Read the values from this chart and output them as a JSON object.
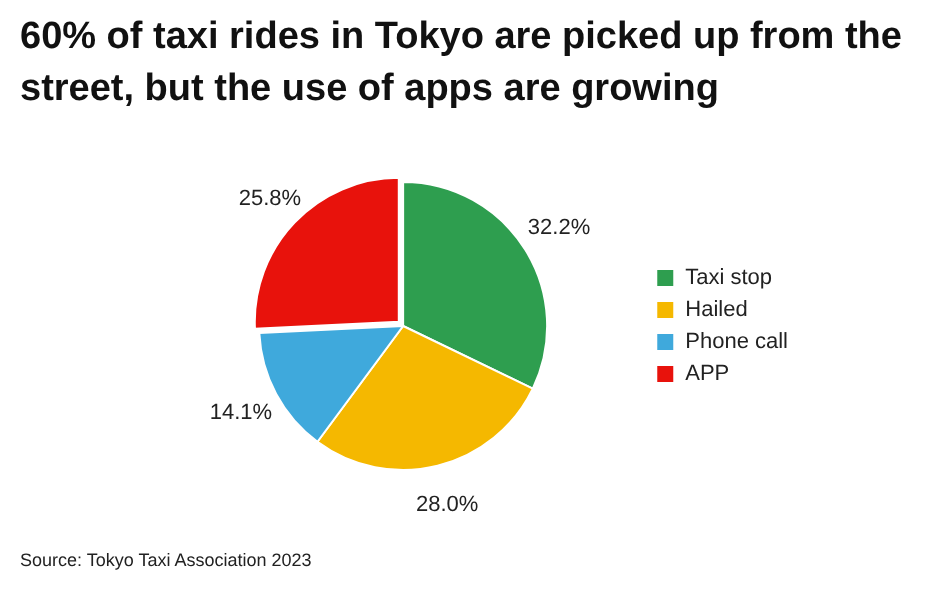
{
  "chart_data": {
    "type": "pie",
    "title": "60% of taxi rides in Tokyo are picked up from the street, but the use of apps are growing",
    "categories": [
      "Taxi stop",
      "Hailed",
      "Phone call",
      "APP"
    ],
    "values": [
      32.2,
      28.0,
      14.1,
      25.8
    ],
    "colors": [
      "#2e9e4f",
      "#f5b800",
      "#3fa9dc",
      "#e8120c"
    ],
    "value_labels": [
      "32.2%",
      "28.0%",
      "14.1%",
      "25.8%"
    ],
    "legend": "right",
    "annotations": [
      "Source: Tokyo Taxi Association 2023"
    ]
  }
}
